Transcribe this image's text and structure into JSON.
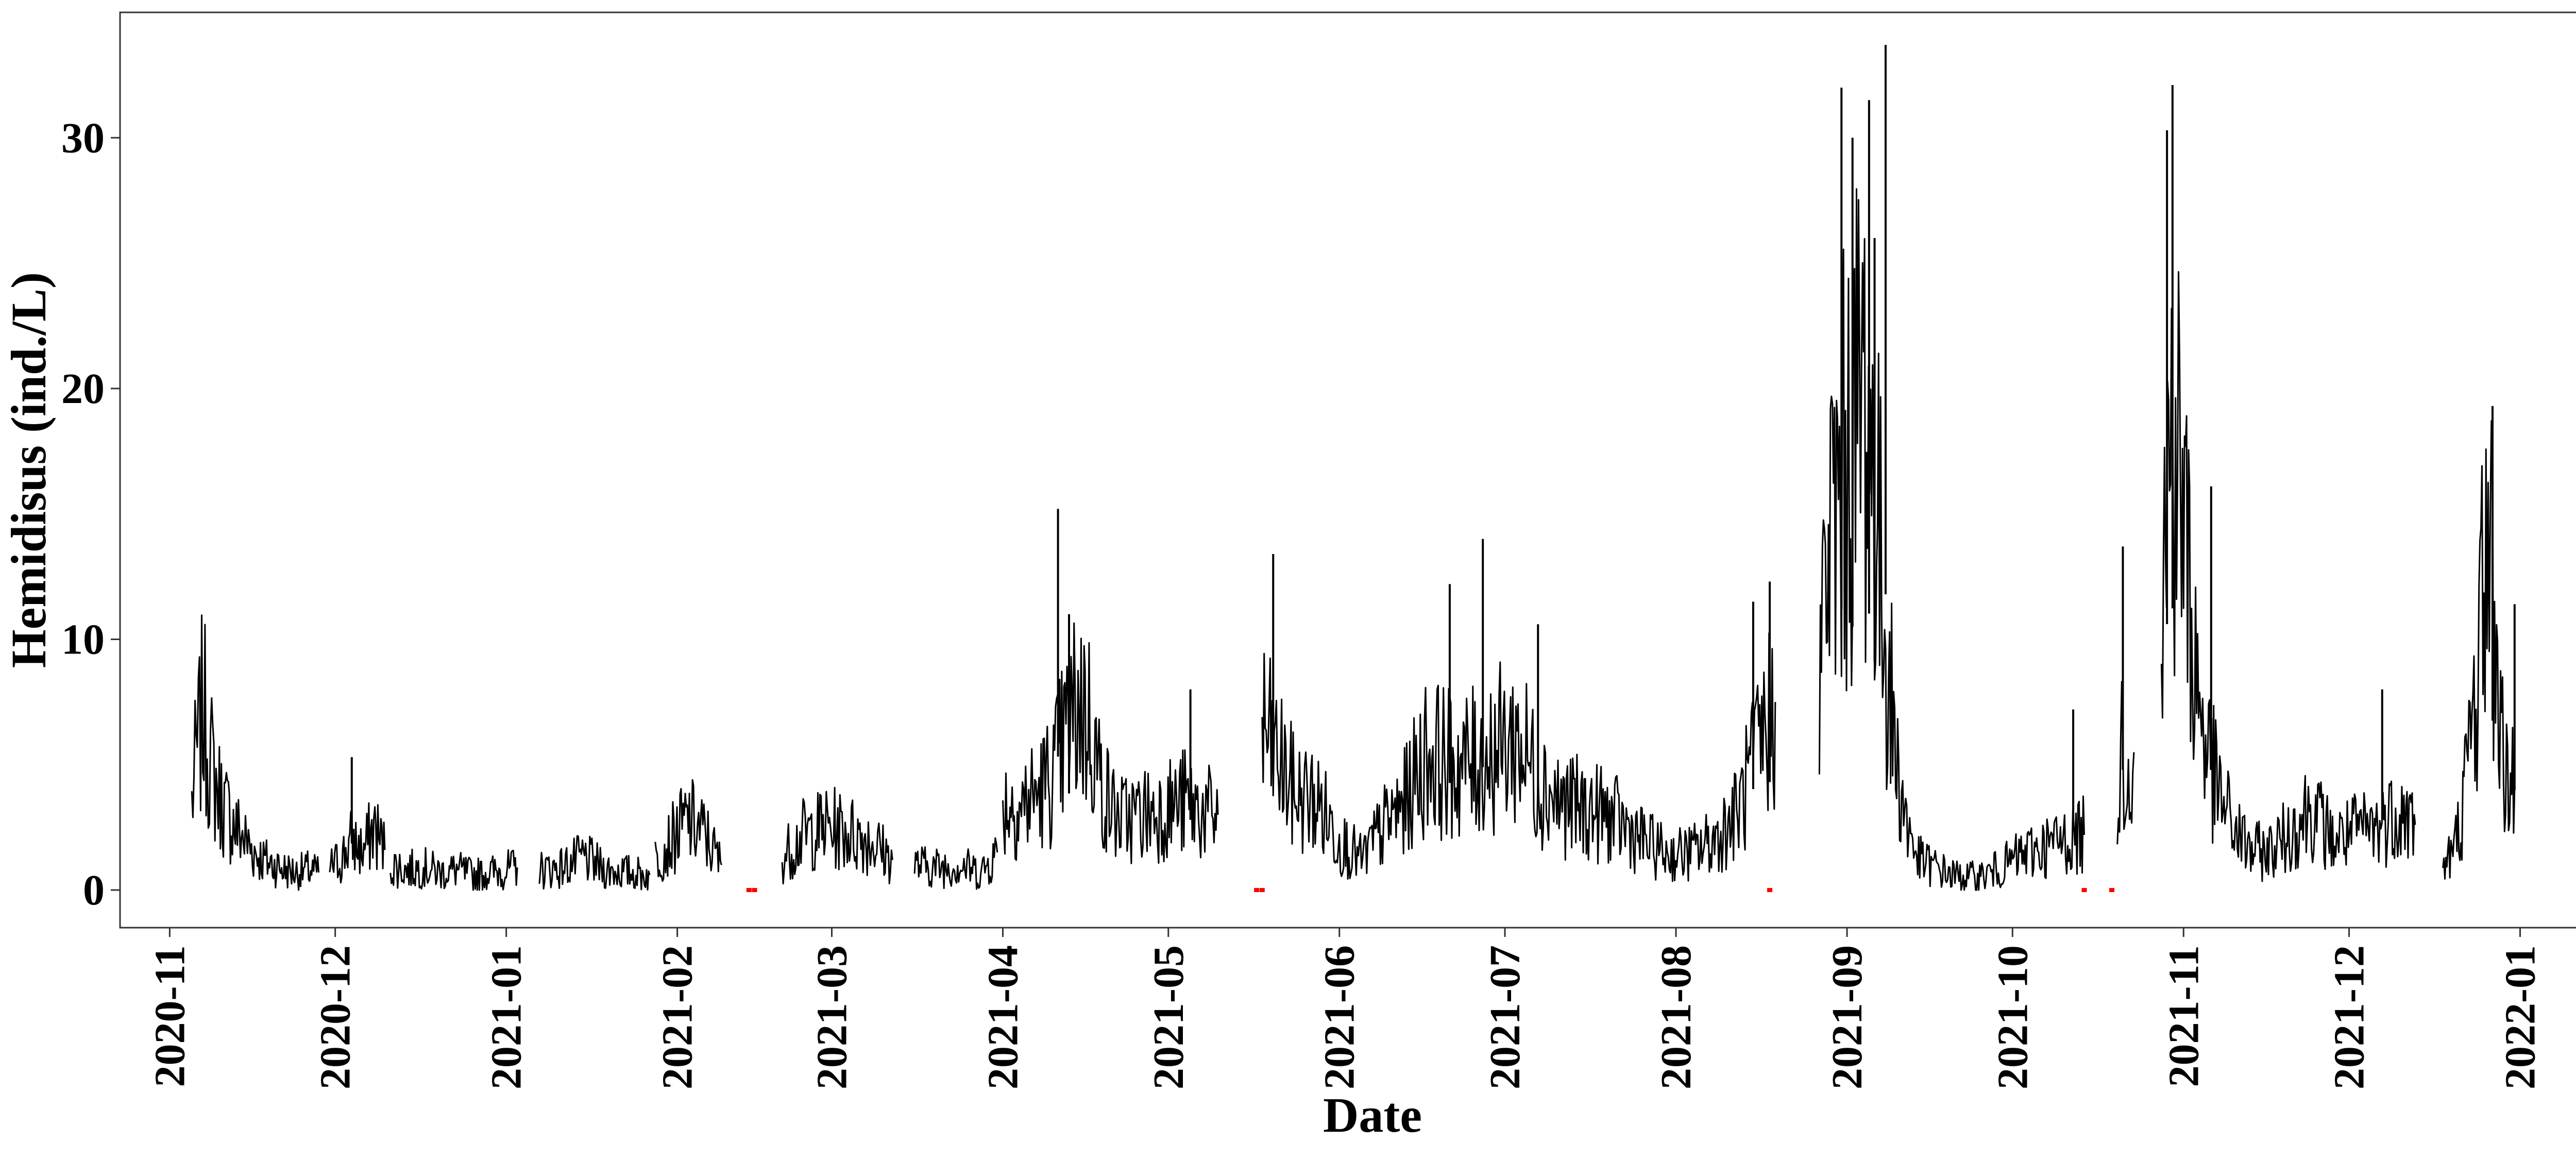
{
  "chart_data": {
    "type": "line",
    "title": "",
    "xlabel": "Date",
    "ylabel": "Hemidisus (ind./L)",
    "x_axis_type": "date",
    "x_range": [
      "2020-10-23",
      "2022-01-20"
    ],
    "ylim": [
      -1.5,
      35
    ],
    "grid": false,
    "legend": "none",
    "x_ticks": [
      "2020-11",
      "2020-12",
      "2021-01",
      "2021-02",
      "2021-03",
      "2021-04",
      "2021-05",
      "2021-06",
      "2021-07",
      "2021-08",
      "2021-09",
      "2021-10",
      "2021-11",
      "2021-12",
      "2022-01"
    ],
    "y_ticks": [
      0,
      10,
      20,
      30
    ],
    "y_tick_labels": [
      "0",
      "10",
      "20",
      "30"
    ],
    "series": [
      {
        "color": "#000000",
        "segments": [
          {
            "x": [
              "2020-11-05",
              "2020-11-06",
              "2020-11-07",
              "2020-11-08",
              "2020-11-09",
              "2020-11-10",
              "2020-11-12",
              "2020-11-14",
              "2020-11-16",
              "2020-11-18",
              "2020-11-20",
              "2020-11-22",
              "2020-11-24",
              "2020-11-26",
              "2020-11-28"
            ],
            "y": [
              3.5,
              5.5,
              7.2,
              5.8,
              4.5,
              3.8,
              2.8,
              2.2,
              1.6,
              1.2,
              1.0,
              0.8,
              0.7,
              0.8,
              0.7
            ]
          },
          {
            "x": [
              "2020-11-30",
              "2020-12-02",
              "2020-12-04",
              "2020-12-06",
              "2020-12-08",
              "2020-12-10"
            ],
            "y": [
              0.9,
              1.2,
              2.0,
              1.5,
              2.5,
              1.6
            ]
          },
          {
            "x": [
              "2020-12-11",
              "2020-12-14",
              "2020-12-17",
              "2020-12-20",
              "2020-12-23",
              "2020-12-26",
              "2020-12-29",
              "2021-01-01",
              "2021-01-03"
            ],
            "y": [
              1.0,
              0.8,
              0.9,
              0.7,
              0.8,
              0.6,
              0.7,
              0.8,
              0.9
            ]
          },
          {
            "x": [
              "2021-01-07",
              "2021-01-11",
              "2021-01-15",
              "2021-01-19",
              "2021-01-23",
              "2021-01-27"
            ],
            "y": [
              0.8,
              0.9,
              1.3,
              0.8,
              0.7,
              0.6
            ]
          },
          {
            "x": [
              "2021-01-28",
              "2021-01-31",
              "2021-02-03",
              "2021-02-06",
              "2021-02-09"
            ],
            "y": [
              1.2,
              2.0,
              2.8,
              2.2,
              1.0
            ]
          },
          {
            "x": [
              "2021-02-20",
              "2021-02-24",
              "2021-02-28",
              "2021-03-04",
              "2021-03-08",
              "2021-03-12"
            ],
            "y": [
              1.3,
              2.2,
              2.5,
              2.3,
              2.0,
              1.2
            ]
          },
          {
            "x": [
              "2021-03-16",
              "2021-03-20",
              "2021-03-24",
              "2021-03-28",
              "2021-03-31"
            ],
            "y": [
              1.0,
              0.9,
              1.0,
              0.7,
              1.5
            ]
          },
          {
            "x": [
              "2021-04-01",
              "2021-04-04",
              "2021-04-07",
              "2021-04-10",
              "2021-04-13",
              "2021-04-15",
              "2021-04-17",
              "2021-04-19",
              "2021-04-22",
              "2021-04-26",
              "2021-04-30",
              "2021-05-04",
              "2021-05-08",
              "2021-05-10"
            ],
            "y": [
              3.5,
              3.3,
              3.8,
              4.5,
              6.5,
              7.5,
              6.5,
              4.0,
              2.8,
              3.0,
              3.2,
              3.5,
              3.0,
              3.0
            ]
          },
          {
            "x": [
              "2021-05-18",
              "2021-05-20",
              "2021-05-24",
              "2021-05-28",
              "2021-06-01",
              "2021-06-05",
              "2021-06-09",
              "2021-06-13",
              "2021-06-17",
              "2021-06-21",
              "2021-06-25",
              "2021-06-29",
              "2021-07-03",
              "2021-07-07",
              "2021-07-11",
              "2021-07-15",
              "2021-07-19",
              "2021-07-23",
              "2021-07-27",
              "2021-07-31",
              "2021-08-04",
              "2021-08-08",
              "2021-08-12",
              "2021-08-16",
              "2021-08-19"
            ],
            "y": [
              6.5,
              5.5,
              3.8,
              3.5,
              2.0,
              1.2,
              2.5,
              3.5,
              5.5,
              5.0,
              5.0,
              5.5,
              6.0,
              4.5,
              3.5,
              3.2,
              3.0,
              2.5,
              1.8,
              1.4,
              1.5,
              2.0,
              3.0,
              5.5,
              7.5
            ]
          },
          {
            "x": [
              "2021-08-27",
              "2021-08-29",
              "2021-08-31",
              "2021-09-02",
              "2021-09-04",
              "2021-09-06",
              "2021-09-08",
              "2021-09-10",
              "2021-09-12",
              "2021-09-14",
              "2021-09-17",
              "2021-09-20",
              "2021-09-23",
              "2021-09-26",
              "2021-09-29",
              "2021-10-02",
              "2021-10-05",
              "2021-10-08",
              "2021-10-11",
              "2021-10-14"
            ],
            "y": [
              9.0,
              14.0,
              16.0,
              18.0,
              20.0,
              16.0,
              10.0,
              5.0,
              2.5,
              1.2,
              0.9,
              0.6,
              0.5,
              0.6,
              0.9,
              1.3,
              1.6,
              1.8,
              2.0,
              2.2
            ]
          },
          {
            "x": [
              "2021-10-20",
              "2021-10-21",
              "2021-10-22",
              "2021-10-23"
            ],
            "y": [
              3.5,
              6.0,
              5.0,
              5.5
            ]
          },
          {
            "x": [
              "2021-10-28",
              "2021-10-30",
              "2021-11-01",
              "2021-11-03",
              "2021-11-05",
              "2021-11-07",
              "2021-11-10",
              "2021-11-13",
              "2021-11-16",
              "2021-11-20",
              "2021-11-24",
              "2021-11-28",
              "2021-12-02",
              "2021-12-06",
              "2021-12-10",
              "2021-12-13"
            ],
            "y": [
              12.0,
              19.0,
              15.0,
              9.0,
              6.0,
              4.0,
              2.5,
              1.6,
              1.5,
              2.2,
              3.3,
              2.0,
              2.3,
              2.5,
              3.2,
              2.6
            ]
          },
          {
            "x": [
              "2021-12-18",
              "2021-12-20",
              "2021-12-22",
              "2021-12-24",
              "2021-12-26",
              "2021-12-27",
              "2021-12-29",
              "2021-12-31"
            ],
            "y": [
              1.0,
              1.5,
              4.0,
              8.0,
              14.5,
              12.0,
              5.0,
              4.0
            ]
          }
        ]
      }
    ],
    "spikes": {
      "x": [
        "2020-12-04",
        "2021-04-11",
        "2021-04-13",
        "2021-05-05",
        "2021-05-20",
        "2021-06-21",
        "2021-06-27",
        "2021-07-07",
        "2021-08-15",
        "2021-08-18",
        "2021-08-31",
        "2021-09-02",
        "2021-09-05",
        "2021-09-06",
        "2021-09-08",
        "2021-10-12",
        "2021-10-21",
        "2021-10-29",
        "2021-10-30",
        "2021-11-06",
        "2021-12-07",
        "2021-12-27",
        "2021-12-31"
      ],
      "y": [
        5.3,
        15.2,
        11.0,
        8.0,
        13.4,
        12.2,
        14.0,
        10.6,
        11.5,
        12.3,
        32.0,
        30.0,
        31.5,
        26.0,
        33.7,
        7.2,
        13.7,
        30.3,
        32.1,
        16.1,
        8.0,
        19.3,
        11.4
      ]
    },
    "zero_markers": {
      "color": "#ff0000",
      "x": [
        "2021-02-14",
        "2021-02-15",
        "2021-05-17",
        "2021-05-18",
        "2021-08-18",
        "2021-10-14",
        "2021-10-19"
      ],
      "y": [
        0,
        0,
        0,
        0,
        0,
        0,
        0
      ]
    }
  }
}
